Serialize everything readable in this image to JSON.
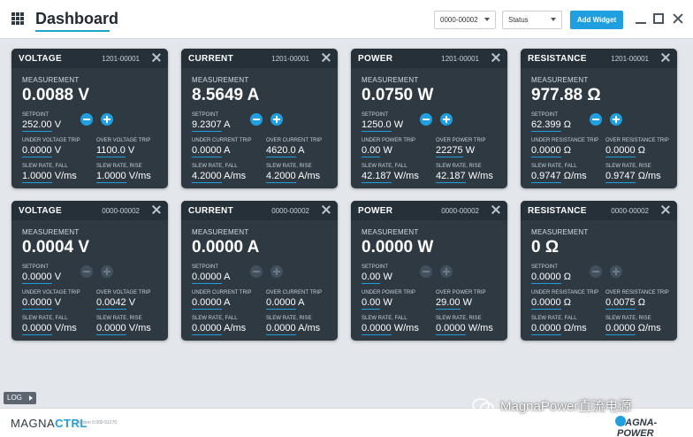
{
  "header": {
    "title": "Dashboard",
    "unit_select": "0000-00002",
    "status_select": "Status",
    "add_widget": "Add Widget"
  },
  "cards": [
    {
      "title": "VOLTAGE",
      "unit": "1201-00001",
      "meas_label": "MEASUREMENT",
      "meas": "0.0088 V",
      "sp_label": "SETPOINT",
      "sp": "252.00",
      "sp_unit": "V",
      "t1_label": "UNDER VOLTAGE TRIP",
      "t1": "0.0000",
      "t1_unit": "V",
      "t2_label": "OVER VOLTAGE TRIP",
      "t2": "1100.0",
      "t2_unit": "V",
      "s1_label": "SLEW RATE, FALL",
      "s1": "1.0000",
      "s1_unit": "V/ms",
      "s2_label": "SLEW RATE, RISE",
      "s2": "1.0000",
      "s2_unit": "V/ms"
    },
    {
      "title": "CURRENT",
      "unit": "1201-00001",
      "meas_label": "MEASUREMENT",
      "meas": "8.5649 A",
      "sp_label": "SETPOINT",
      "sp": "9.2307",
      "sp_unit": "A",
      "t1_label": "UNDER CURRENT TRIP",
      "t1": "0.0000",
      "t1_unit": "A",
      "t2_label": "OVER CURRENT TRIP",
      "t2": "4620.0",
      "t2_unit": "A",
      "s1_label": "SLEW RATE, FALL",
      "s1": "4.2000",
      "s1_unit": "A/ms",
      "s2_label": "SLEW RATE, RISE",
      "s2": "4.2000",
      "s2_unit": "A/ms"
    },
    {
      "title": "POWER",
      "unit": "1201-00001",
      "meas_label": "MEASUREMENT",
      "meas": "0.0750 W",
      "sp_label": "SETPOINT",
      "sp": "1250.0",
      "sp_unit": "W",
      "t1_label": "UNDER POWER TRIP",
      "t1": "0.00",
      "t1_unit": "W",
      "t2_label": "OVER POWER TRIP",
      "t2": "22275",
      "t2_unit": "W",
      "s1_label": "SLEW RATE, FALL",
      "s1": "42.187",
      "s1_unit": "W/ms",
      "s2_label": "SLEW RATE, RISE",
      "s2": "42.187",
      "s2_unit": "W/ms"
    },
    {
      "title": "RESISTANCE",
      "unit": "1201-00001",
      "meas_label": "MEASUREMENT",
      "meas": "977.88 Ω",
      "sp_label": "SETPOINT",
      "sp": "62.399",
      "sp_unit": "Ω",
      "t1_label": "UNDER RESISTANCE TRIP",
      "t1": "0.0000",
      "t1_unit": "Ω",
      "t2_label": "OVER RESISTANCE TRIP",
      "t2": "0.0000",
      "t2_unit": "Ω",
      "s1_label": "SLEW RATE, FALL",
      "s1": "0.9747",
      "s1_unit": "Ω/ms",
      "s2_label": "SLEW RATE, RISE",
      "s2": "0.9747",
      "s2_unit": "Ω/ms"
    },
    {
      "title": "VOLTAGE",
      "unit": "0000-00002",
      "meas_label": "MEASUREMENT",
      "meas": "0.0004 V",
      "sp_label": "SETPOINT",
      "sp": "0.0000",
      "sp_unit": "V",
      "t1_label": "UNDER VOLTAGE TRIP",
      "t1": "0.0000",
      "t1_unit": "V",
      "t2_label": "OVER VOLTAGE TRIP",
      "t2": "0.0042",
      "t2_unit": "V",
      "s1_label": "SLEW RATE, FALL",
      "s1": "0.0000",
      "s1_unit": "V/ms",
      "s2_label": "SLEW RATE, RISE",
      "s2": "0.0000",
      "s2_unit": "V/ms"
    },
    {
      "title": "CURRENT",
      "unit": "0000-00002",
      "meas_label": "MEASUREMENT",
      "meas": "0.0000 A",
      "sp_label": "SETPOINT",
      "sp": "0.0000",
      "sp_unit": "A",
      "t1_label": "UNDER CURRENT TRIP",
      "t1": "0.0000",
      "t1_unit": "A",
      "t2_label": "OVER CURRENT TRIP",
      "t2": "0.0000",
      "t2_unit": "A",
      "s1_label": "SLEW RATE, FALL",
      "s1": "0.0000",
      "s1_unit": "A/ms",
      "s2_label": "SLEW RATE, RISE",
      "s2": "0.0000",
      "s2_unit": "A/ms"
    },
    {
      "title": "POWER",
      "unit": "0000-00002",
      "meas_label": "MEASUREMENT",
      "meas": "0.0000 W",
      "sp_label": "SETPOINT",
      "sp": "0.00",
      "sp_unit": "W",
      "t1_label": "UNDER POWER TRIP",
      "t1": "0.00",
      "t1_unit": "W",
      "t2_label": "OVER POWER TRIP",
      "t2": "29.00",
      "t2_unit": "W",
      "s1_label": "SLEW RATE, FALL",
      "s1": "0.0000",
      "s1_unit": "W/ms",
      "s2_label": "SLEW RATE, RISE",
      "s2": "0.0000",
      "s2_unit": "W/ms"
    },
    {
      "title": "RESISTANCE",
      "unit": "0000-00002",
      "meas_label": "MEASUREMENT",
      "meas": "0 Ω",
      "sp_label": "SETPOINT",
      "sp": "0.0000",
      "sp_unit": "Ω",
      "t1_label": "UNDER RESISTANCE TRIP",
      "t1": "0.0000",
      "t1_unit": "Ω",
      "t2_label": "OVER RESISTANCE TRIP",
      "t2": "0.0075",
      "t2_unit": "Ω",
      "s1_label": "SLEW RATE, FALL",
      "s1": "0.0000",
      "s1_unit": "Ω/ms",
      "s2_label": "SLEW RATE, RISE",
      "s2": "0.0000",
      "s2_unit": "Ω/ms"
    }
  ],
  "footer": {
    "log": "LOG",
    "brand_a": "MAGNA",
    "brand_b": "CTRL",
    "version": "Version 0.000-51270",
    "wechat": "MagnaPower直流电源",
    "logo": "MAGNA-POWER"
  },
  "colors": {
    "accent": "#1f9fe0",
    "card_bg": "#2e3942",
    "page_bg": "#e3e6ea"
  }
}
